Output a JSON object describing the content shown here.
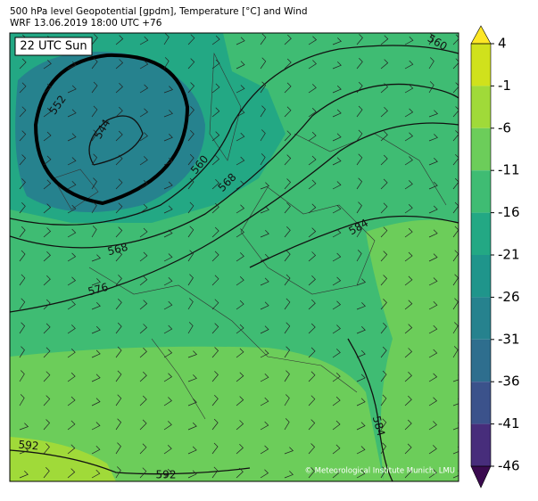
{
  "header": {
    "line1": "500 hPa level Geopotential [gpdm], Temperature [°C] and Wind",
    "line2": "WRF 13.06.2019 18:00 UTC +76"
  },
  "map": {
    "time_label": "22 UTC Sun",
    "credit": "© Meteorological Institute Munich, LMU",
    "contour_labels": [
      "552",
      "544",
      "560",
      "568",
      "568",
      "576",
      "584",
      "584",
      "592",
      "592",
      "560"
    ]
  },
  "colorbar": {
    "lim": [
      -46,
      4
    ],
    "ticks": [
      4,
      -1,
      -6,
      -11,
      -16,
      -21,
      -26,
      -31,
      -36,
      -41,
      -46
    ],
    "colors": [
      "#d0e11c",
      "#a0da39",
      "#6ccd5a",
      "#3fbc73",
      "#23a884",
      "#1f958b",
      "#26828e",
      "#2e6e8e",
      "#3b528b",
      "#472d7b",
      "#440154"
    ],
    "over_color": "#fde725",
    "under_color": "#3a0a4f"
  }
}
